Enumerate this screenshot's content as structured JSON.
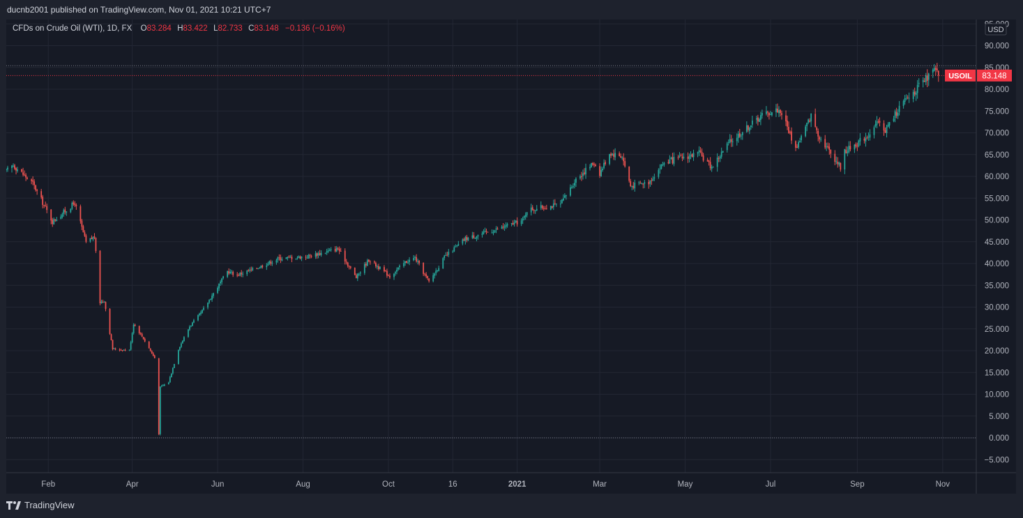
{
  "header": {
    "publish_text": "ducnb2001 published on TradingView.com, Nov 01, 2021 10:21 UTC+7"
  },
  "legend": {
    "symbol": "CFDs on Crude Oil (WTI), 1D, FX",
    "o_label": "O",
    "o_value": "83.284",
    "h_label": "H",
    "h_value": "83.422",
    "l_label": "L",
    "l_value": "82.733",
    "c_label": "C",
    "c_value": "83.148",
    "change": "−0.136 (−0.16%)"
  },
  "price_axis": {
    "currency": "USD",
    "ticker": "USOIL",
    "last_price": "83.148"
  },
  "footer": {
    "brand": "TradingView"
  },
  "colors": {
    "background": "#161a25",
    "up": "#26a69a",
    "down": "#ef5350",
    "grid": "#232734",
    "text": "#d1d4dc",
    "price_label": "#f23645"
  },
  "chart_data": {
    "type": "candlestick",
    "timeframe": "1D",
    "y_range": [
      -8,
      96
    ],
    "y_ticks": [
      -5,
      0,
      5,
      10,
      15,
      20,
      25,
      30,
      35,
      40,
      45,
      50,
      55,
      60,
      65,
      70,
      75,
      80,
      85,
      90,
      95
    ],
    "x_range": [
      "2020-01-02",
      "2021-11-25"
    ],
    "x_ticks": [
      {
        "date": "2020-02-01",
        "label": "Feb"
      },
      {
        "date": "2020-04-01",
        "label": "Apr"
      },
      {
        "date": "2020-06-01",
        "label": "Jun"
      },
      {
        "date": "2020-08-01",
        "label": "Aug"
      },
      {
        "date": "2020-10-01",
        "label": "Oct"
      },
      {
        "date": "2020-11-16",
        "label": "16"
      },
      {
        "date": "2021-01-01",
        "label": "2021"
      },
      {
        "date": "2021-03-01",
        "label": "Mar"
      },
      {
        "date": "2021-05-01",
        "label": "May"
      },
      {
        "date": "2021-07-01",
        "label": "Jul"
      },
      {
        "date": "2021-09-01",
        "label": "Sep"
      },
      {
        "date": "2021-11-01",
        "label": "Nov"
      }
    ],
    "horizontal_lines": [
      {
        "value": 85.4,
        "style": "dotted",
        "color": "#787b86"
      },
      {
        "value": 83.148,
        "style": "dotted",
        "color": "#f23645"
      },
      {
        "value": 0,
        "style": "dotted",
        "color": "#787b86"
      }
    ],
    "anchors": [
      {
        "date": "2020-01-02",
        "close": 61.2
      },
      {
        "date": "2020-01-07",
        "close": 62.6
      },
      {
        "date": "2020-01-21",
        "close": 58.4
      },
      {
        "date": "2020-02-04",
        "close": 49.6
      },
      {
        "date": "2020-02-20",
        "close": 53.9
      },
      {
        "date": "2020-02-28",
        "close": 44.8
      },
      {
        "date": "2020-03-05",
        "close": 46.2
      },
      {
        "date": "2020-03-09",
        "close": 31.1
      },
      {
        "date": "2020-03-12",
        "close": 31.5
      },
      {
        "date": "2020-03-18",
        "close": 20.4
      },
      {
        "date": "2020-03-30",
        "close": 20.1
      },
      {
        "date": "2020-04-02",
        "close": 26.2
      },
      {
        "date": "2020-04-09",
        "close": 22.8
      },
      {
        "date": "2020-04-17",
        "close": 18.3
      },
      {
        "date": "2020-04-20",
        "close": 1.0
      },
      {
        "date": "2020-04-21",
        "close": 11.6
      },
      {
        "date": "2020-04-27",
        "close": 12.8
      },
      {
        "date": "2020-05-04",
        "close": 20.4
      },
      {
        "date": "2020-05-12",
        "close": 25.6
      },
      {
        "date": "2020-05-20",
        "close": 28.6
      },
      {
        "date": "2020-06-08",
        "close": 38.2
      },
      {
        "date": "2020-06-15",
        "close": 37.4
      },
      {
        "date": "2020-06-26",
        "close": 38.6
      },
      {
        "date": "2020-07-15",
        "close": 41.2
      },
      {
        "date": "2020-08-04",
        "close": 41.6
      },
      {
        "date": "2020-08-26",
        "close": 43.4
      },
      {
        "date": "2020-09-08",
        "close": 36.8
      },
      {
        "date": "2020-09-17",
        "close": 40.9
      },
      {
        "date": "2020-10-02",
        "close": 37.1
      },
      {
        "date": "2020-10-13",
        "close": 40.3
      },
      {
        "date": "2020-10-20",
        "close": 41.3
      },
      {
        "date": "2020-10-30",
        "close": 35.8
      },
      {
        "date": "2020-11-10",
        "close": 41.4
      },
      {
        "date": "2020-11-25",
        "close": 45.7
      },
      {
        "date": "2020-12-15",
        "close": 47.6
      },
      {
        "date": "2021-01-05",
        "close": 49.9
      },
      {
        "date": "2021-01-08",
        "close": 52.3
      },
      {
        "date": "2021-02-01",
        "close": 53.6
      },
      {
        "date": "2021-02-12",
        "close": 59.4
      },
      {
        "date": "2021-02-25",
        "close": 63.2
      },
      {
        "date": "2021-03-01",
        "close": 60.7
      },
      {
        "date": "2021-03-08",
        "close": 65.4
      },
      {
        "date": "2021-03-17",
        "close": 64.6
      },
      {
        "date": "2021-03-23",
        "close": 57.8
      },
      {
        "date": "2021-04-05",
        "close": 58.7
      },
      {
        "date": "2021-04-16",
        "close": 63.2
      },
      {
        "date": "2021-05-11",
        "close": 65.3
      },
      {
        "date": "2021-05-20",
        "close": 62.1
      },
      {
        "date": "2021-06-01",
        "close": 67.6
      },
      {
        "date": "2021-06-25",
        "close": 74.1
      },
      {
        "date": "2021-07-06",
        "close": 75.3
      },
      {
        "date": "2021-07-09",
        "close": 74.6
      },
      {
        "date": "2021-07-19",
        "close": 66.4
      },
      {
        "date": "2021-07-30",
        "close": 73.9
      },
      {
        "date": "2021-08-05",
        "close": 69.1
      },
      {
        "date": "2021-08-20",
        "close": 62.2
      },
      {
        "date": "2021-08-23",
        "close": 65.7
      },
      {
        "date": "2021-09-08",
        "close": 69.3
      },
      {
        "date": "2021-09-16",
        "close": 72.3
      },
      {
        "date": "2021-09-21",
        "close": 70.6
      },
      {
        "date": "2021-10-01",
        "close": 75.8
      },
      {
        "date": "2021-10-06",
        "close": 77.6
      },
      {
        "date": "2021-10-21",
        "close": 82.6
      },
      {
        "date": "2021-10-26",
        "close": 84.4
      },
      {
        "date": "2021-10-29",
        "close": 83.148
      }
    ]
  }
}
